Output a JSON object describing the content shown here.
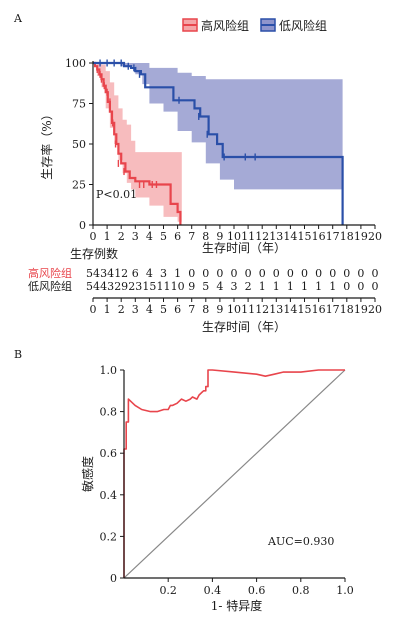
{
  "colors": {
    "high": "#e8454c",
    "high_band": "#f4a6a8",
    "low": "#2a4fa8",
    "low_band": "#8f95cc",
    "roc": "#e8454c",
    "diag": "#888888",
    "axis": "#1a1a1a"
  },
  "chart_data": [
    {
      "panel": "A",
      "type": "line",
      "legend": [
        {
          "name": "高风险组",
          "color": "#e8454c"
        },
        {
          "name": "低风险组",
          "color": "#2a4fa8"
        }
      ],
      "legend_position": "top-right",
      "xlabel": "生存时间（年）",
      "ylabel": "生存率（%）",
      "xlim": [
        0,
        20
      ],
      "ylim": [
        0,
        100
      ],
      "xticks": [
        0,
        1,
        2,
        3,
        4,
        5,
        6,
        7,
        8,
        9,
        10,
        11,
        12,
        13,
        14,
        15,
        16,
        17,
        18,
        19,
        20
      ],
      "yticks": [
        0,
        25,
        50,
        75,
        100
      ],
      "annotation": "P<0.01",
      "grid": false,
      "series": [
        {
          "name": "高风险组",
          "step_x": [
            0,
            0.15,
            0.3,
            0.45,
            0.6,
            0.75,
            0.9,
            1.05,
            1.2,
            1.35,
            1.5,
            1.65,
            1.8,
            2.0,
            2.3,
            2.6,
            3.0,
            4.0,
            5.0,
            5.5,
            6.0,
            6.2
          ],
          "step_y": [
            100,
            98,
            96,
            93,
            90,
            86,
            82,
            76,
            70,
            63,
            56,
            50,
            44,
            38,
            33,
            29,
            27,
            25,
            25,
            13,
            8,
            0
          ],
          "censor_x": [
            0.3,
            0.5,
            0.6,
            0.8,
            1.0,
            1.2,
            1.4,
            1.6,
            1.8,
            2.2,
            3.3,
            3.6,
            4.2,
            4.5
          ],
          "censor_y": [
            96,
            93,
            90,
            86,
            82,
            76,
            63,
            50,
            38,
            33,
            25,
            25,
            25,
            25
          ],
          "ci_x": [
            0,
            0.3,
            0.6,
            0.9,
            1.2,
            1.5,
            1.8,
            2.1,
            2.4,
            2.7,
            3.0,
            4.0,
            5.0,
            5.5,
            6.0,
            6.3
          ],
          "ci_upper": [
            100,
            100,
            99,
            95,
            88,
            80,
            72,
            65,
            62,
            52,
            45,
            45,
            45,
            45,
            45,
            45
          ],
          "ci_lower": [
            100,
            92,
            85,
            72,
            60,
            50,
            40,
            32,
            26,
            22,
            17,
            12,
            5,
            5,
            2,
            0
          ]
        },
        {
          "name": "低风险组",
          "step_x": [
            0,
            1.8,
            2.2,
            2.7,
            3.0,
            3.4,
            3.7,
            5.3,
            5.7,
            6.8,
            7.2,
            7.6,
            8.2,
            8.8,
            9.2,
            17.7
          ],
          "step_y": [
            100,
            100,
            98,
            97,
            95,
            93,
            85,
            85,
            77,
            77,
            72,
            67,
            56,
            50,
            42,
            0
          ],
          "censor_x": [
            0.5,
            1.0,
            1.5,
            2.0,
            2.5,
            2.9,
            3.3,
            6.1,
            7.5,
            8.1,
            9.3,
            10.8,
            11.5
          ],
          "censor_y": [
            100,
            100,
            100,
            100,
            98,
            97,
            93,
            77,
            67,
            56,
            42,
            42,
            42
          ],
          "ci_x": [
            0,
            2.0,
            3.0,
            3.5,
            4.0,
            5.0,
            6.0,
            7.0,
            8.0,
            9.0,
            10.0,
            17.7
          ],
          "ci_upper": [
            100,
            100,
            100,
            100,
            97,
            97,
            94,
            92,
            90,
            90,
            90,
            90
          ],
          "ci_lower": [
            100,
            98,
            93,
            87,
            75,
            70,
            58,
            51,
            38,
            28,
            22,
            20
          ]
        }
      ],
      "risk_table": {
        "title": "生存例数",
        "xlabel": "生存时间（年）",
        "xticks": [
          0,
          1,
          2,
          3,
          4,
          5,
          6,
          7,
          8,
          9,
          10,
          11,
          12,
          13,
          14,
          15,
          16,
          17,
          18,
          19,
          20
        ],
        "rows": [
          {
            "label": "高风险组",
            "color": "#e8454c",
            "values": [
              "54",
              "34",
              "12",
              "6",
              "4",
              "3",
              "1",
              "0",
              "0",
              "0",
              "0",
              "0",
              "0",
              "0",
              "0",
              "0",
              "0",
              "0",
              "0",
              "0",
              "0"
            ]
          },
          {
            "label": "低风险组",
            "color": "#1a1a1a",
            "values": [
              "54",
              "43",
              "29",
              "23",
              "15",
              "11",
              "10",
              "9",
              "5",
              "4",
              "3",
              "2",
              "1",
              "1",
              "1",
              "1",
              "1",
              "1",
              "0",
              "0",
              "0"
            ]
          }
        ]
      }
    },
    {
      "panel": "B",
      "type": "line",
      "xlabel": "1- 特异度",
      "ylabel": "敏感度",
      "xlim": [
        0,
        1
      ],
      "ylim": [
        0,
        1
      ],
      "xticks": [
        "0.2",
        "0.4",
        "0.6",
        "0.8",
        "1.0"
      ],
      "yticks": [
        "0",
        "0.2",
        "0.4",
        "0.6",
        "0.8",
        "1.0"
      ],
      "annotation": "AUC=0.930",
      "grid": false,
      "series": [
        {
          "name": "",
          "x": [
            0,
            0,
            0.01,
            0.01,
            0.02,
            0.02,
            0.05,
            0.08,
            0.12,
            0.15,
            0.18,
            0.2,
            0.21,
            0.22,
            0.24,
            0.26,
            0.28,
            0.3,
            0.31,
            0.33,
            0.34,
            0.35,
            0.36,
            0.37,
            0.37,
            0.38,
            0.38,
            0.4,
            0.5,
            0.6,
            0.64,
            0.68,
            0.72,
            0.8,
            0.88,
            0.95,
            1.0
          ],
          "y": [
            0,
            0.62,
            0.62,
            0.75,
            0.75,
            0.86,
            0.83,
            0.81,
            0.8,
            0.8,
            0.81,
            0.81,
            0.83,
            0.83,
            0.84,
            0.86,
            0.85,
            0.86,
            0.87,
            0.86,
            0.88,
            0.89,
            0.9,
            0.9,
            0.92,
            0.92,
            1.0,
            1.0,
            0.99,
            0.98,
            0.97,
            0.98,
            0.99,
            0.99,
            1.0,
            1.0,
            1.0
          ]
        },
        {
          "name": "",
          "x": [
            0,
            1
          ],
          "y": [
            0,
            1
          ]
        }
      ]
    }
  ]
}
